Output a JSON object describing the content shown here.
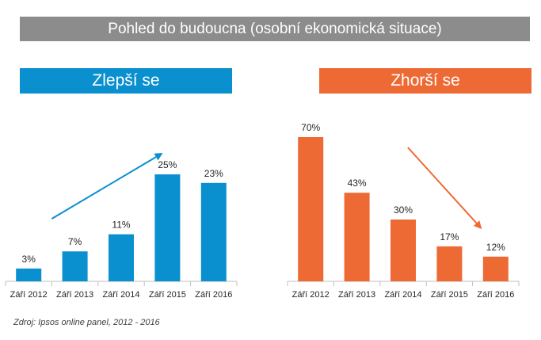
{
  "title": "Pohled do budoucna (osobní ekonomická situace)",
  "source": "Zdroj: Ipsos online panel, 2012 - 2016",
  "colors": {
    "title_bg": "#8c8c8c",
    "improve": "#0a8fcf",
    "worsen": "#ee6a35"
  },
  "chart_data": [
    {
      "type": "bar",
      "title": "Zlepší se",
      "categories": [
        "Září 2012",
        "Září 2013",
        "Září 2014",
        "Září 2015",
        "Září 2016"
      ],
      "values": [
        3,
        7,
        11,
        25,
        23
      ],
      "value_labels": [
        "3%",
        "7%",
        "11%",
        "25%",
        "23%"
      ],
      "ylim": [
        0,
        25
      ],
      "color": "#0a8fcf",
      "annotation": "arrow-up"
    },
    {
      "type": "bar",
      "title": "Zhorší se",
      "categories": [
        "Září 2012",
        "Září 2013",
        "Září 2014",
        "Září 2015",
        "Září 2016"
      ],
      "values": [
        70,
        43,
        30,
        17,
        12
      ],
      "value_labels": [
        "70%",
        "43%",
        "30%",
        "17%",
        "12%"
      ],
      "ylim": [
        0,
        70
      ],
      "color": "#ee6a35",
      "annotation": "arrow-down"
    }
  ]
}
